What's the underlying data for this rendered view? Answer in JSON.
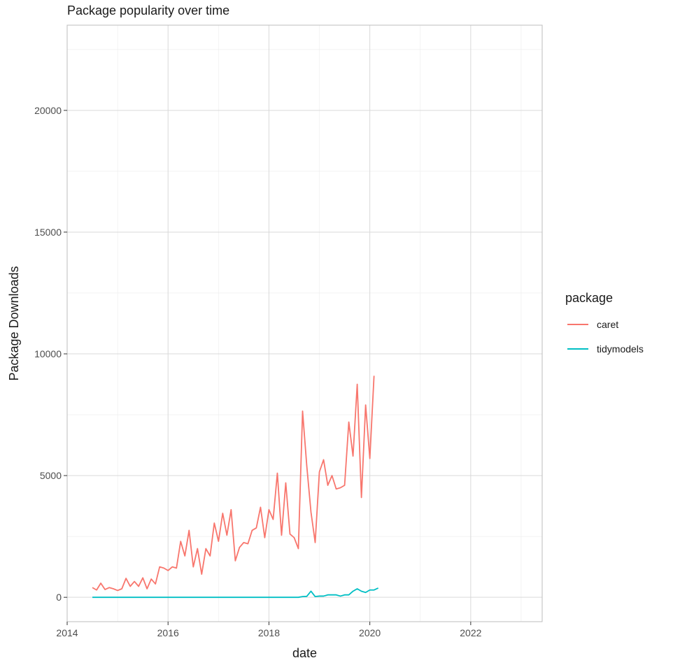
{
  "chart_data": {
    "type": "line",
    "title": "Package popularity over time",
    "xlabel": "date",
    "ylabel": "Package Downloads",
    "xlim": [
      "2014-01-01",
      "2023-06-01"
    ],
    "ylim": [
      -1000,
      23500
    ],
    "x_ticks": [
      "2014",
      "2016",
      "2018",
      "2020",
      "2022"
    ],
    "y_ticks": [
      "0",
      "5000",
      "10000",
      "15000",
      "20000"
    ],
    "grid": true,
    "legend": {
      "title": "package",
      "position": "right"
    },
    "x": [
      "2014-07",
      "2014-08",
      "2014-09",
      "2014-10",
      "2014-11",
      "2014-12",
      "2015-01",
      "2015-02",
      "2015-03",
      "2015-04",
      "2015-05",
      "2015-06",
      "2015-07",
      "2015-08",
      "2015-09",
      "2015-10",
      "2015-11",
      "2015-12",
      "2016-01",
      "2016-02",
      "2016-03",
      "2016-04",
      "2016-05",
      "2016-06",
      "2016-07",
      "2016-08",
      "2016-09",
      "2016-10",
      "2016-11",
      "2016-12",
      "2017-01",
      "2017-02",
      "2017-03",
      "2017-04",
      "2017-05",
      "2017-06",
      "2017-07",
      "2017-08",
      "2017-09",
      "2017-10",
      "2017-11",
      "2017-12",
      "2018-01",
      "2018-02",
      "2018-03",
      "2018-04",
      "2018-05",
      "2018-06",
      "2018-07",
      "2018-08",
      "2018-09",
      "2018-10",
      "2018-11",
      "2018-12",
      "2019-01",
      "2019-02",
      "2019-03",
      "2019-04",
      "2019-05",
      "2019-06",
      "2019-07",
      "2019-08",
      "2019-09",
      "2019-10",
      "2019-11",
      "2019-12",
      "2020-01",
      "2020-02",
      "2020-03",
      "2020-04"
    ],
    "series": [
      {
        "name": "caret",
        "color": "#F8766D",
        "values": [
          400,
          300,
          580,
          320,
          400,
          350,
          280,
          350,
          780,
          450,
          650,
          450,
          800,
          350,
          750,
          550,
          1250,
          1200,
          1100,
          1250,
          1200,
          2300,
          1700,
          2750,
          1250,
          2000,
          950,
          2000,
          1700,
          3050,
          2300,
          3450,
          2550,
          3600,
          1500,
          2050,
          2250,
          2200,
          2750,
          2850,
          3700,
          2450,
          3600,
          3200,
          5100,
          2550,
          4700,
          2600,
          2450,
          2000,
          7650,
          5400,
          3500,
          2250,
          5150,
          5650,
          4600,
          5000,
          4450,
          4500,
          4600,
          7200,
          5800,
          8750,
          4100,
          7900,
          5700,
          9100,
          null,
          null
        ]
      },
      {
        "name": "tidymodels",
        "color": "#00BFC4",
        "values": [
          0,
          0,
          0,
          0,
          0,
          0,
          0,
          0,
          0,
          0,
          0,
          0,
          0,
          0,
          0,
          0,
          0,
          0,
          0,
          0,
          0,
          0,
          0,
          0,
          0,
          0,
          0,
          0,
          0,
          0,
          0,
          0,
          0,
          0,
          0,
          0,
          0,
          0,
          0,
          0,
          0,
          0,
          0,
          0,
          0,
          0,
          0,
          0,
          0,
          0,
          30,
          40,
          250,
          30,
          50,
          50,
          100,
          100,
          100,
          50,
          100,
          100,
          250,
          350,
          250,
          200,
          300,
          300,
          380,
          null
        ]
      }
    ]
  }
}
